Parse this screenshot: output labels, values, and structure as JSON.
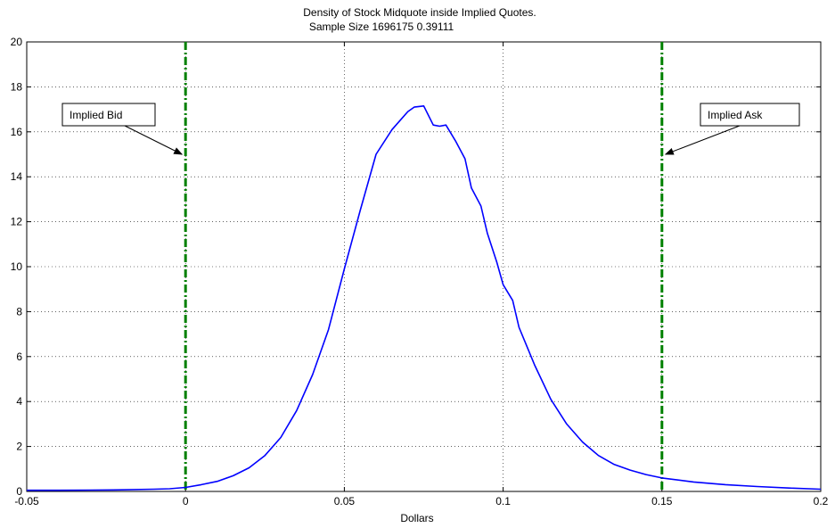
{
  "chart_data": {
    "type": "line",
    "title_line1": "Density of Stock Midquote inside Implied Quotes.",
    "title_line2": "Sample Size 1696175 0.39111",
    "xlabel": "Dollars",
    "ylabel": "",
    "xlim": [
      -0.05,
      0.2
    ],
    "ylim": [
      0,
      20
    ],
    "xticks": [
      -0.05,
      0,
      0.05,
      0.1,
      0.15,
      0.2
    ],
    "xtick_labels": [
      "-0.05",
      "0",
      "0.05",
      "0.1",
      "0.15",
      "0.2"
    ],
    "yticks": [
      0,
      2,
      4,
      6,
      8,
      10,
      12,
      14,
      16,
      18,
      20
    ],
    "ytick_labels": [
      "0",
      "2",
      "4",
      "6",
      "8",
      "10",
      "12",
      "14",
      "16",
      "18",
      "20"
    ],
    "grid": true,
    "series": [
      {
        "color": "#0000ff",
        "x": [
          -0.05,
          -0.04,
          -0.03,
          -0.02,
          -0.01,
          -0.005,
          0,
          0.005,
          0.01,
          0.015,
          0.02,
          0.025,
          0.03,
          0.035,
          0.04,
          0.045,
          0.05,
          0.055,
          0.06,
          0.065,
          0.07,
          0.072,
          0.075,
          0.078,
          0.08,
          0.082,
          0.085,
          0.088,
          0.09,
          0.093,
          0.095,
          0.098,
          0.1,
          0.103,
          0.105,
          0.11,
          0.115,
          0.12,
          0.125,
          0.13,
          0.135,
          0.14,
          0.145,
          0.15,
          0.16,
          0.17,
          0.18,
          0.19,
          0.2
        ],
        "y": [
          0.05,
          0.05,
          0.06,
          0.07,
          0.1,
          0.12,
          0.18,
          0.3,
          0.45,
          0.7,
          1.05,
          1.6,
          2.4,
          3.6,
          5.2,
          7.2,
          9.9,
          12.5,
          15.0,
          16.1,
          16.9,
          17.1,
          17.15,
          16.3,
          16.25,
          16.3,
          15.6,
          14.8,
          13.5,
          12.7,
          11.5,
          10.2,
          9.2,
          8.5,
          7.3,
          5.6,
          4.1,
          3.0,
          2.2,
          1.6,
          1.2,
          0.95,
          0.75,
          0.6,
          0.42,
          0.3,
          0.22,
          0.15,
          0.1
        ]
      }
    ],
    "reference_lines": [
      {
        "x": 0,
        "color": "#008000",
        "style": "dash-dot"
      },
      {
        "x": 0.15,
        "color": "#008000",
        "style": "dash-dot"
      }
    ],
    "annotations": [
      {
        "text": "Implied Bid",
        "arrow_to": {
          "x": 0,
          "y": 15
        }
      },
      {
        "text": "Implied Ask",
        "arrow_to": {
          "x": 0.15,
          "y": 15
        }
      }
    ]
  }
}
